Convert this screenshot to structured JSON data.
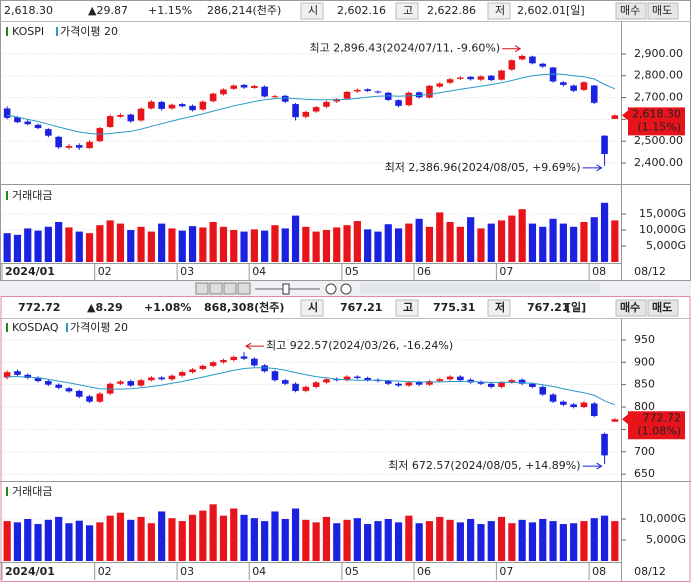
{
  "chart_data": [
    {
      "type": "candlestick",
      "title": "KOSPI",
      "ma_label": "가격이평 20",
      "volume_label": "거래대금",
      "quote": [
        "2,618.30",
        "▲29.87",
        "+1.15%",
        "286,214(천주)",
        "시",
        "2,602.16",
        "고",
        "2,622.86",
        "저",
        "2,602.01",
        "[일]",
        "매수",
        "매도"
      ],
      "max_note": "최고 2,896.43(2024/07/11, -9.60%)",
      "min_note": "최저 2,386.96(2024/08/05, +9.69%)",
      "last_label": "2,618.30",
      "last_change": "(1.15%)",
      "date_label": "08/12",
      "up_color": "#e8141b",
      "down_color": "#1a22e0",
      "ma_color": "#2a9ac8",
      "grid": true,
      "categories": [
        "2024/01",
        null,
        null,
        null,
        null,
        null,
        null,
        null,
        null,
        "02",
        null,
        null,
        null,
        null,
        null,
        null,
        null,
        "03",
        null,
        null,
        null,
        null,
        null,
        null,
        "04",
        null,
        null,
        null,
        null,
        null,
        null,
        null,
        null,
        "05",
        null,
        null,
        null,
        null,
        null,
        null,
        "06",
        null,
        null,
        null,
        null,
        null,
        null,
        null,
        "07",
        null,
        null,
        null,
        null,
        null,
        null,
        null,
        null,
        "08",
        null,
        null
      ],
      "open": [
        2650,
        2610,
        2590,
        2575,
        2555,
        2520,
        2470,
        2482,
        2468,
        2500,
        2565,
        2612,
        2622,
        2595,
        2650,
        2680,
        2650,
        2670,
        2662,
        2645,
        2683,
        2715,
        2740,
        2758,
        2744,
        2750,
        2702,
        2708,
        2670,
        2612,
        2636,
        2658,
        2682,
        2695,
        2728,
        2738,
        2728,
        2722,
        2688,
        2665,
        2724,
        2700,
        2750,
        2768,
        2786,
        2795,
        2782,
        2800,
        2782,
        2828,
        2875,
        2888,
        2855,
        2838,
        2770,
        2755,
        2735,
        2755,
        2525,
        2602.16
      ],
      "high": [
        2660,
        2615,
        2598,
        2580,
        2560,
        2525,
        2488,
        2490,
        2505,
        2565,
        2622,
        2628,
        2626,
        2655,
        2688,
        2685,
        2672,
        2675,
        2668,
        2688,
        2722,
        2742,
        2760,
        2762,
        2758,
        2755,
        2712,
        2712,
        2675,
        2640,
        2662,
        2686,
        2698,
        2730,
        2742,
        2742,
        2732,
        2726,
        2692,
        2728,
        2728,
        2758,
        2770,
        2790,
        2798,
        2798,
        2802,
        2804,
        2828,
        2875,
        2896.43,
        2892,
        2860,
        2840,
        2775,
        2760,
        2775,
        2758,
        2528,
        2622.86
      ],
      "low": [
        2600,
        2582,
        2572,
        2555,
        2518,
        2465,
        2462,
        2460,
        2465,
        2495,
        2560,
        2608,
        2585,
        2590,
        2645,
        2640,
        2645,
        2655,
        2636,
        2640,
        2678,
        2710,
        2735,
        2740,
        2740,
        2700,
        2698,
        2675,
        2595,
        2605,
        2630,
        2652,
        2676,
        2690,
        2722,
        2725,
        2718,
        2684,
        2655,
        2660,
        2695,
        2696,
        2745,
        2762,
        2780,
        2778,
        2776,
        2775,
        2778,
        2822,
        2870,
        2852,
        2836,
        2768,
        2750,
        2725,
        2730,
        2670,
        2386.96,
        2602.01
      ],
      "close": [
        2607,
        2587,
        2578,
        2560,
        2525,
        2472,
        2478,
        2470,
        2497,
        2560,
        2615,
        2620,
        2591,
        2649,
        2681,
        2648,
        2667,
        2660,
        2642,
        2681,
        2718,
        2737,
        2755,
        2746,
        2753,
        2705,
        2706,
        2681,
        2610,
        2634,
        2656,
        2680,
        2692,
        2726,
        2735,
        2730,
        2724,
        2689,
        2662,
        2722,
        2701,
        2754,
        2764,
        2784,
        2792,
        2784,
        2797,
        2780,
        2824,
        2871,
        2891,
        2857,
        2842,
        2774,
        2758,
        2731,
        2770,
        2676,
        2441,
        2618.3
      ],
      "ma": [
        2620,
        2610,
        2600,
        2590,
        2578,
        2565,
        2553,
        2542,
        2535,
        2532,
        2535,
        2540,
        2545,
        2555,
        2568,
        2580,
        2592,
        2604,
        2614,
        2625,
        2638,
        2650,
        2662,
        2672,
        2682,
        2690,
        2695,
        2698,
        2695,
        2692,
        2690,
        2690,
        2690,
        2692,
        2696,
        2702,
        2706,
        2708,
        2706,
        2708,
        2710,
        2715,
        2722,
        2730,
        2738,
        2745,
        2752,
        2760,
        2768,
        2778,
        2790,
        2800,
        2805,
        2808,
        2806,
        2800,
        2795,
        2785,
        2760,
        2740
      ],
      "volume": [
        9000,
        8500,
        10500,
        9800,
        11000,
        12500,
        10800,
        9500,
        9000,
        11500,
        13000,
        12000,
        10000,
        11000,
        9500,
        12000,
        10500,
        9800,
        11200,
        10800,
        12500,
        11000,
        10000,
        9500,
        10200,
        9800,
        11500,
        10500,
        14500,
        11000,
        9500,
        10000,
        10800,
        11500,
        12800,
        10200,
        9500,
        11800,
        10500,
        12000,
        13500,
        11000,
        15500,
        12500,
        11000,
        14000,
        10500,
        12000,
        13000,
        14500,
        16500,
        12000,
        11000,
        13500,
        12000,
        11000,
        12500,
        14000,
        18500,
        13000
      ],
      "ylim": [
        2322,
        3028
      ],
      "yticks": [
        {
          "value": 2400,
          "label": "2,400.00"
        },
        {
          "value": 2500,
          "label": "2,500.00"
        },
        {
          "value": 2600,
          "label": "2,600.00"
        },
        {
          "value": 2700,
          "label": "2,700.00"
        },
        {
          "value": 2800,
          "label": "2,800.00"
        },
        {
          "value": 2900,
          "label": "2,900.00"
        }
      ],
      "vlim": [
        0,
        22500
      ],
      "vticks": [
        {
          "value": 5000,
          "label": "5,000G"
        },
        {
          "value": 10000,
          "label": "10,000G"
        },
        {
          "value": 15000,
          "label": "15,000G"
        }
      ]
    },
    {
      "type": "candlestick",
      "title": "KOSDAQ",
      "ma_label": "가격이평 20",
      "volume_label": "거래대금",
      "quote": [
        "772.72",
        "▲8.29",
        "+1.08%",
        "868,308(천주)",
        "시",
        "767.21",
        "고",
        "775.31",
        "저",
        "767.21",
        "[일]",
        "매수",
        "매도"
      ],
      "max_note": "최고 922.57(2024/03/26, -16.24%)",
      "min_note": "최저 672.57(2024/08/05, +14.89%)",
      "last_label": "772.72",
      "last_change": "(1.08%)",
      "date_label": "08/12",
      "up_color": "#e8141b",
      "down_color": "#1a22e0",
      "ma_color": "#2a9ac8",
      "grid": true,
      "categories": [
        "2024/01",
        null,
        null,
        null,
        null,
        null,
        null,
        null,
        null,
        "02",
        null,
        null,
        null,
        null,
        null,
        null,
        null,
        "03",
        null,
        null,
        null,
        null,
        null,
        null,
        "04",
        null,
        null,
        null,
        null,
        null,
        null,
        null,
        null,
        "05",
        null,
        null,
        null,
        null,
        null,
        null,
        "06",
        null,
        null,
        null,
        null,
        null,
        null,
        null,
        "07",
        null,
        null,
        null,
        null,
        null,
        null,
        null,
        null,
        "08",
        null,
        null
      ],
      "open": [
        866,
        880,
        872,
        866,
        858,
        850,
        842,
        836,
        824,
        812,
        830,
        852,
        858,
        848,
        860,
        866,
        862,
        870,
        878,
        885,
        892,
        900,
        905,
        913,
        908,
        893,
        880,
        860,
        852,
        836,
        845,
        855,
        863,
        860,
        868,
        865,
        861,
        858,
        852,
        848,
        856,
        850,
        858,
        862,
        868,
        861,
        856,
        852,
        845,
        855,
        861,
        852,
        845,
        828,
        812,
        806,
        800,
        808,
        740,
        767.21
      ],
      "high": [
        882,
        884,
        875,
        869,
        861,
        853,
        845,
        839,
        827,
        833,
        855,
        860,
        861,
        863,
        869,
        869,
        873,
        881,
        887,
        895,
        903,
        908,
        915,
        922.57,
        911,
        896,
        883,
        863,
        855,
        848,
        858,
        865,
        866,
        871,
        871,
        868,
        864,
        861,
        855,
        858,
        859,
        861,
        865,
        871,
        871,
        864,
        859,
        855,
        858,
        863,
        864,
        855,
        848,
        831,
        815,
        809,
        813,
        811,
        743,
        775.31
      ],
      "low": [
        862,
        869,
        862,
        855,
        847,
        840,
        832,
        820,
        809,
        809,
        827,
        849,
        845,
        845,
        857,
        859,
        859,
        867,
        875,
        882,
        889,
        897,
        902,
        905,
        890,
        877,
        857,
        849,
        833,
        833,
        842,
        852,
        857,
        857,
        862,
        857,
        855,
        849,
        845,
        845,
        847,
        847,
        855,
        859,
        857,
        852,
        849,
        842,
        842,
        852,
        849,
        842,
        825,
        809,
        802,
        797,
        797,
        777,
        672.57,
        767.21
      ],
      "close": [
        878,
        872,
        865,
        858,
        850,
        843,
        835,
        823,
        812,
        830,
        852,
        857,
        848,
        860,
        866,
        862,
        870,
        878,
        884,
        892,
        900,
        905,
        912,
        908,
        893,
        880,
        860,
        852,
        836,
        845,
        855,
        862,
        860,
        868,
        865,
        860,
        858,
        852,
        848,
        855,
        850,
        858,
        862,
        868,
        860,
        855,
        852,
        845,
        855,
        860,
        852,
        845,
        828,
        812,
        805,
        800,
        810,
        780,
        692,
        772.72
      ],
      "ma": [
        868,
        868,
        867,
        865,
        862,
        858,
        854,
        850,
        845,
        841,
        840,
        840,
        841,
        843,
        846,
        849,
        853,
        857,
        862,
        867,
        872,
        877,
        882,
        886,
        888,
        888,
        886,
        882,
        877,
        872,
        868,
        865,
        862,
        861,
        860,
        860,
        860,
        859,
        858,
        857,
        856,
        856,
        856,
        857,
        857,
        857,
        856,
        855,
        855,
        855,
        854,
        853,
        850,
        846,
        841,
        836,
        832,
        826,
        814,
        805
      ],
      "volume": [
        9500,
        9200,
        10000,
        8800,
        9800,
        10500,
        9000,
        9600,
        8500,
        9200,
        10800,
        11500,
        9800,
        10500,
        9000,
        11800,
        10200,
        9500,
        11000,
        12000,
        13500,
        10800,
        12500,
        11000,
        10200,
        9500,
        11800,
        10000,
        12500,
        9800,
        9200,
        10500,
        9000,
        9800,
        10200,
        8800,
        9500,
        10000,
        9200,
        10800,
        9000,
        9500,
        10500,
        9800,
        9200,
        10000,
        8800,
        9500,
        10500,
        9000,
        9800,
        9200,
        10000,
        9500,
        8800,
        9000,
        9500,
        10200,
        10800,
        9500
      ],
      "ylim": [
        637,
        990
      ],
      "yticks": [
        650,
        700,
        750,
        800,
        850,
        900,
        950
      ],
      "vlim": [
        0,
        17860
      ],
      "vticks": [
        {
          "value": 5000,
          "label": "5,000G"
        },
        {
          "value": 10000,
          "label": "10,000G"
        }
      ]
    }
  ]
}
